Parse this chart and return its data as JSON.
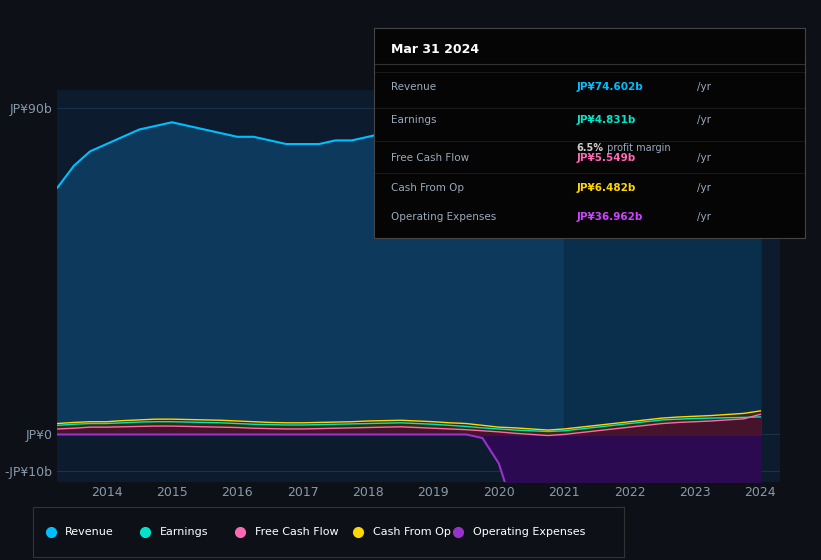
{
  "background_color": "#0d1117",
  "chart_bg": "#0d1b2e",
  "years": [
    2013.25,
    2013.5,
    2013.75,
    2014.0,
    2014.25,
    2014.5,
    2014.75,
    2015.0,
    2015.25,
    2015.5,
    2015.75,
    2016.0,
    2016.25,
    2016.5,
    2016.75,
    2017.0,
    2017.25,
    2017.5,
    2017.75,
    2018.0,
    2018.25,
    2018.5,
    2018.75,
    2019.0,
    2019.25,
    2019.5,
    2019.75,
    2020.0,
    2020.25,
    2020.5,
    2020.75,
    2021.0,
    2021.25,
    2021.5,
    2021.75,
    2022.0,
    2022.25,
    2022.5,
    2022.75,
    2023.0,
    2023.25,
    2023.5,
    2023.75,
    2024.0
  ],
  "revenue": [
    68,
    74,
    78,
    80,
    82,
    84,
    85,
    86,
    85,
    84,
    83,
    82,
    82,
    81,
    80,
    80,
    80,
    81,
    81,
    82,
    83,
    83,
    82,
    81,
    79,
    76,
    71,
    65,
    60,
    57,
    56,
    58,
    62,
    65,
    68,
    70,
    70,
    70,
    70,
    71,
    72,
    73,
    74,
    74.6
  ],
  "earnings": [
    2.5,
    2.8,
    3.0,
    3.0,
    3.2,
    3.4,
    3.5,
    3.5,
    3.4,
    3.3,
    3.2,
    3.0,
    2.8,
    2.7,
    2.6,
    2.6,
    2.7,
    2.8,
    2.9,
    3.0,
    3.1,
    3.2,
    3.0,
    2.8,
    2.5,
    2.2,
    1.8,
    1.5,
    1.2,
    1.0,
    0.8,
    1.0,
    1.5,
    2.0,
    2.5,
    3.0,
    3.5,
    4.0,
    4.2,
    4.4,
    4.5,
    4.6,
    4.7,
    4.831
  ],
  "free_cash_flow": [
    1.5,
    1.7,
    2.0,
    2.0,
    2.1,
    2.2,
    2.3,
    2.3,
    2.2,
    2.1,
    2.0,
    1.9,
    1.7,
    1.6,
    1.5,
    1.5,
    1.6,
    1.7,
    1.8,
    1.9,
    2.0,
    2.1,
    1.9,
    1.7,
    1.5,
    1.3,
    1.0,
    0.7,
    0.3,
    0.0,
    -0.3,
    0.0,
    0.5,
    1.0,
    1.5,
    2.0,
    2.5,
    3.0,
    3.3,
    3.5,
    3.7,
    4.0,
    4.3,
    5.549
  ],
  "cash_from_op": [
    3.0,
    3.3,
    3.5,
    3.5,
    3.8,
    4.0,
    4.2,
    4.2,
    4.1,
    4.0,
    3.9,
    3.7,
    3.5,
    3.3,
    3.2,
    3.2,
    3.3,
    3.4,
    3.5,
    3.7,
    3.8,
    3.9,
    3.7,
    3.5,
    3.2,
    3.0,
    2.5,
    2.0,
    1.8,
    1.5,
    1.2,
    1.5,
    2.0,
    2.5,
    3.0,
    3.5,
    4.0,
    4.5,
    4.8,
    5.0,
    5.2,
    5.5,
    5.8,
    6.482
  ],
  "operating_expenses": [
    0,
    0,
    0,
    0,
    0,
    0,
    0,
    0,
    0,
    0,
    0,
    0,
    0,
    0,
    0,
    0,
    0,
    0,
    0,
    0,
    0,
    0,
    0,
    0,
    0,
    0,
    -1,
    -8,
    -22,
    -29,
    -31,
    -33,
    -35,
    -36,
    -36,
    -35,
    -34,
    -33,
    -33,
    -34,
    -36,
    -37,
    -37.5,
    -36.962
  ],
  "ylim_top": 95,
  "ylim_bottom": -13,
  "yticks": [
    90,
    0,
    -10
  ],
  "ytick_labels": [
    "JP¥90b",
    "JP¥0",
    "-JP¥10b"
  ],
  "xtick_years": [
    2014,
    2015,
    2016,
    2017,
    2018,
    2019,
    2020,
    2021,
    2022,
    2023,
    2024
  ],
  "revenue_color": "#00bfff",
  "earnings_color": "#00e5cc",
  "free_cash_flow_color": "#ff69b4",
  "cash_from_op_color": "#ffd700",
  "op_expenses_color": "#9932cc",
  "legend_items": [
    {
      "label": "Revenue",
      "color": "#00bfff"
    },
    {
      "label": "Earnings",
      "color": "#00e5cc"
    },
    {
      "label": "Free Cash Flow",
      "color": "#ff69b4"
    },
    {
      "label": "Cash From Op",
      "color": "#ffd700"
    },
    {
      "label": "Operating Expenses",
      "color": "#9932cc"
    }
  ],
  "tooltip_title": "Mar 31 2024",
  "tooltip_rows": [
    {
      "label": "Revenue",
      "value": "JP¥74.602b",
      "unit": "/yr",
      "color": "#00bfff",
      "sub": null
    },
    {
      "label": "Earnings",
      "value": "JP¥4.831b",
      "unit": "/yr",
      "color": "#00e5cc",
      "sub": "6.5% profit margin"
    },
    {
      "label": "Free Cash Flow",
      "value": "JP¥5.549b",
      "unit": "/yr",
      "color": "#ff69b4",
      "sub": null
    },
    {
      "label": "Cash From Op",
      "value": "JP¥6.482b",
      "unit": "/yr",
      "color": "#ffd700",
      "sub": null
    },
    {
      "label": "Operating Expenses",
      "value": "JP¥36.962b",
      "unit": "/yr",
      "color": "#cc44ff",
      "sub": null
    }
  ]
}
